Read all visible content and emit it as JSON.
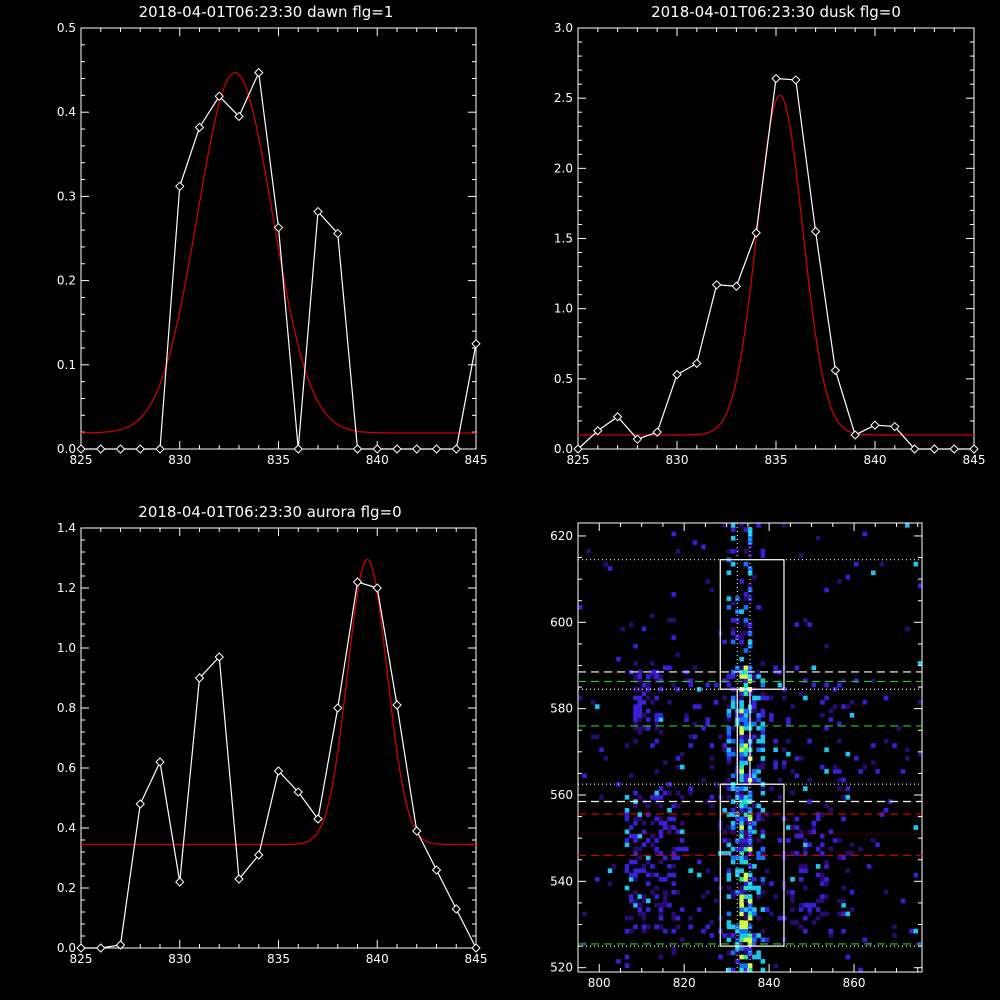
{
  "chart_data": [
    {
      "type": "line",
      "title": "2018-04-01T06:23:30 dawn flg=1",
      "xlim": [
        825,
        845
      ],
      "ylim": [
        0,
        0.5
      ],
      "xticks": [
        825,
        830,
        835,
        840,
        845
      ],
      "xtick_labels": [
        "825",
        "830",
        "835",
        "840",
        "845"
      ],
      "yticks": [
        0,
        0.1,
        0.2,
        0.3,
        0.4,
        0.5
      ],
      "ytick_labels": [
        "0.0",
        "0.1",
        "0.2",
        "0.3",
        "0.4",
        "0.5"
      ],
      "grid": false,
      "series": [
        {
          "color": "#ffffff",
          "marker": "diamond",
          "x": [
            825,
            826,
            827,
            828,
            829,
            830,
            831,
            832,
            833,
            834,
            835,
            836,
            837,
            838,
            839,
            840,
            841,
            842,
            843,
            844,
            845
          ],
          "y": [
            0,
            0,
            0,
            0,
            0,
            0.312,
            0.382,
            0.419,
            0.395,
            0.447,
            0.263,
            0,
            0.282,
            0.256,
            0,
            0,
            0,
            0,
            0,
            0,
            0.125
          ]
        },
        {
          "color": "#cc0000",
          "fit": "gaussian",
          "amplitude": 0.428,
          "center": 832.8,
          "sigma": 1.9,
          "offset": 0.019
        }
      ]
    },
    {
      "type": "line",
      "title": "2018-04-01T06:23:30 dusk flg=0",
      "xlim": [
        825,
        845
      ],
      "ylim": [
        0,
        3.0
      ],
      "xticks": [
        825,
        830,
        835,
        840,
        845
      ],
      "xtick_labels": [
        "825",
        "830",
        "835",
        "840",
        "845"
      ],
      "yticks": [
        0,
        0.5,
        1.0,
        1.5,
        2.0,
        2.5,
        3.0
      ],
      "ytick_labels": [
        "0.0",
        "0.5",
        "1.0",
        "1.5",
        "2.0",
        "2.5",
        "3.0"
      ],
      "grid": false,
      "series": [
        {
          "color": "#ffffff",
          "marker": "diamond",
          "x": [
            825,
            826,
            827,
            828,
            829,
            830,
            831,
            832,
            833,
            834,
            835,
            836,
            837,
            838,
            839,
            840,
            841,
            842,
            843,
            844,
            845
          ],
          "y": [
            0,
            0.13,
            0.23,
            0.07,
            0.12,
            0.53,
            0.61,
            1.17,
            1.16,
            1.54,
            2.64,
            2.63,
            1.55,
            0.56,
            0.1,
            0.17,
            0.16,
            0,
            0,
            0,
            0
          ]
        },
        {
          "color": "#cc0000",
          "fit": "gaussian",
          "amplitude": 2.42,
          "center": 835.2,
          "sigma": 1.15,
          "offset": 0.1
        }
      ]
    },
    {
      "type": "line",
      "title": "2018-04-01T06:23:30 aurora flg=0",
      "xlim": [
        825,
        845
      ],
      "ylim": [
        0,
        1.4
      ],
      "xticks": [
        825,
        830,
        835,
        840,
        845
      ],
      "xtick_labels": [
        "825",
        "830",
        "835",
        "840",
        "845"
      ],
      "yticks": [
        0,
        0.2,
        0.4,
        0.6,
        0.8,
        1.0,
        1.2,
        1.4
      ],
      "ytick_labels": [
        "0.0",
        "0.2",
        "0.4",
        "0.6",
        "0.8",
        "1.0",
        "1.2",
        "1.4"
      ],
      "grid": false,
      "series": [
        {
          "color": "#ffffff",
          "marker": "diamond",
          "x": [
            825,
            826,
            827,
            828,
            829,
            830,
            831,
            832,
            833,
            834,
            835,
            836,
            837,
            838,
            839,
            840,
            841,
            842,
            843,
            844,
            845
          ],
          "y": [
            0,
            0,
            0.01,
            0.48,
            0.62,
            0.22,
            0.9,
            0.97,
            0.23,
            0.31,
            0.59,
            0.52,
            0.43,
            0.8,
            1.22,
            1.2,
            0.81,
            0.39,
            0.26,
            0.13,
            0
          ]
        },
        {
          "color": "#cc0000",
          "fit": "gaussian",
          "amplitude": 0.95,
          "center": 839.5,
          "sigma": 1.0,
          "offset": 0.345
        }
      ]
    },
    {
      "type": "heatmap",
      "title": "",
      "xlim": [
        795,
        876
      ],
      "ylim": [
        519,
        623
      ],
      "xticks": [
        800,
        820,
        840,
        860
      ],
      "xtick_labels": [
        "800",
        "820",
        "840",
        "860"
      ],
      "yticks": [
        520,
        540,
        560,
        580,
        600,
        620
      ],
      "ytick_labels": [
        "520",
        "540",
        "560",
        "580",
        "600",
        "620"
      ],
      "colormap": [
        "#2a0a6e",
        "#3a1fd8",
        "#1470ff",
        "#18c8f0",
        "#28e8a0",
        "#d8ff40"
      ],
      "vertical_lines": [
        {
          "x": 832.5,
          "style": "dotted",
          "color": "#ffffff"
        },
        {
          "x": 835.5,
          "style": "dotted",
          "color": "#ffffff"
        }
      ],
      "horizontal_lines": [
        {
          "y": 614.5,
          "style": "dotted",
          "color": "#ffffff"
        },
        {
          "y": 588.5,
          "style": "dashed",
          "color": "#ffffff"
        },
        {
          "y": 586.3,
          "style": "dashed",
          "color": "#22cc22"
        },
        {
          "y": 584.5,
          "style": "dotted",
          "color": "#ffffff"
        },
        {
          "y": 576.0,
          "style": "dashed",
          "color": "#22cc22"
        },
        {
          "y": 562.5,
          "style": "dotted",
          "color": "#ffffff"
        },
        {
          "y": 558.5,
          "style": "dashed",
          "color": "#ffffff"
        },
        {
          "y": 555.6,
          "style": "dashed",
          "color": "#cc0000"
        },
        {
          "y": 551.0,
          "style": "dotted",
          "color": "#cc0000"
        },
        {
          "y": 546.0,
          "style": "dashed",
          "color": "#cc0000"
        },
        {
          "y": 525.5,
          "style": "dashed",
          "color": "#22cc22"
        },
        {
          "y": 525.0,
          "style": "dotted",
          "color": "#ffffff"
        }
      ],
      "boxes": [
        {
          "x0": 828.5,
          "x1": 843.5,
          "y0": 584.5,
          "y1": 614.5
        },
        {
          "x0": 832.5,
          "x1": 835.5,
          "y0": 562.5,
          "y1": 584.5
        },
        {
          "x0": 828.5,
          "x1": 843.5,
          "y0": 525.0,
          "y1": 562.5
        }
      ]
    }
  ]
}
